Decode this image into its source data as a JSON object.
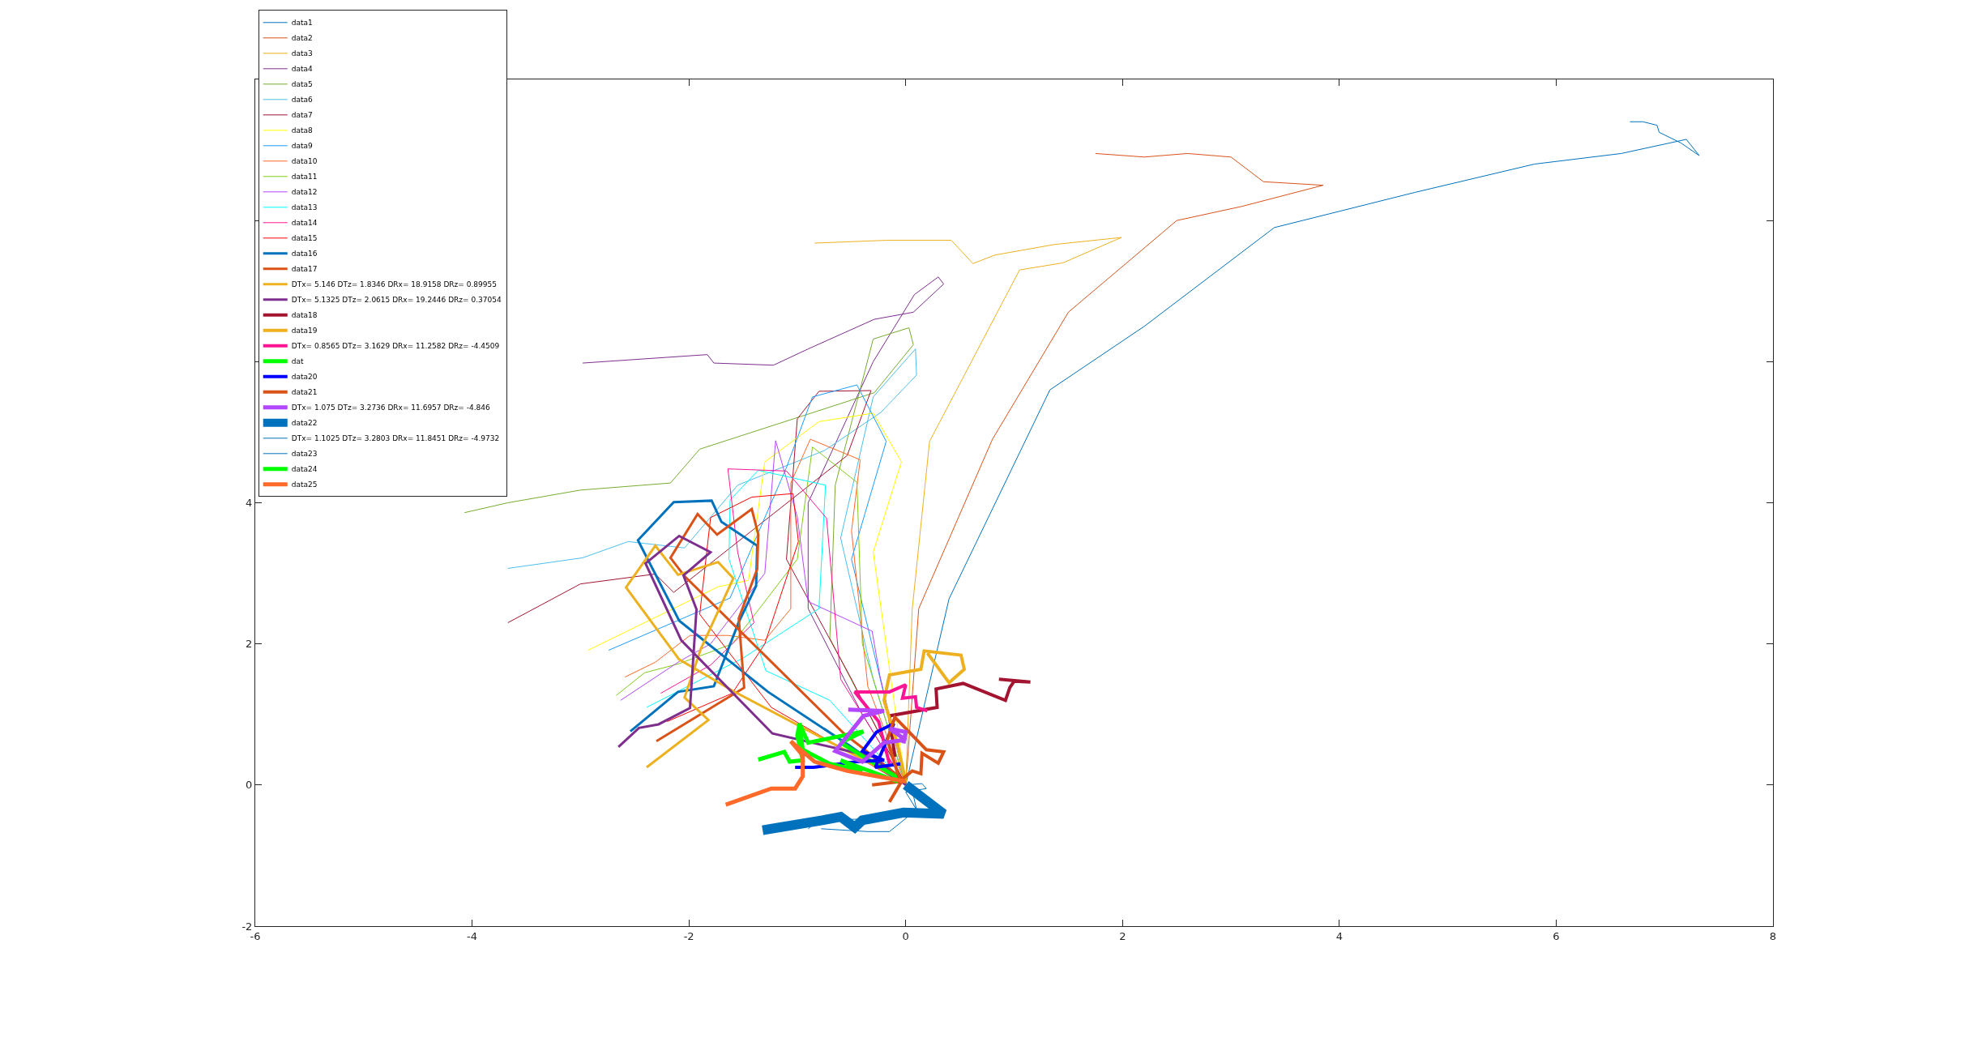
{
  "chart_data": {
    "type": "line",
    "xlim": [
      -6,
      8
    ],
    "xticks": [
      -6,
      -4,
      -2,
      0,
      2,
      4,
      6,
      8
    ],
    "ylim": [
      -2,
      10
    ],
    "yticks": [
      -2,
      0,
      2,
      4,
      {
        "value": 6,
        "label": null
      },
      {
        "value": 8,
        "label": null
      },
      {
        "value": 10,
        "label": null
      }
    ],
    "legend": "top left",
    "series": [
      {
        "name": "data1",
        "color": "#0072bd",
        "x": [
          0,
          0.4,
          1.33,
          2.2,
          3.4,
          4.7,
          5.8,
          6.6,
          7.2,
          7.32,
          7.15,
          6.95,
          6.93,
          6.8,
          6.68
        ],
        "values": [
          0,
          2.64,
          5.6,
          6.5,
          7.9,
          8.4,
          8.8,
          8.95,
          9.15,
          8.92,
          9.1,
          9.25,
          9.35,
          9.4,
          9.4
        ]
      },
      {
        "name": "data2",
        "color": "#d95319",
        "x": [
          0,
          0.12,
          0.8,
          1.5,
          2.5,
          3.1,
          3.85,
          3.3,
          3.0,
          2.6,
          2.2,
          1.75
        ],
        "values": [
          0,
          2.5,
          4.9,
          6.7,
          8.0,
          8.2,
          8.5,
          8.55,
          8.9,
          8.95,
          8.9,
          8.95
        ]
      },
      {
        "name": "data3",
        "color": "#edb120",
        "x": [
          0,
          0.06,
          0.22,
          1.05,
          1.45,
          1.99,
          1.37,
          0.82,
          0.62,
          0.42,
          -0.18,
          -0.84
        ],
        "values": [
          0,
          2.49,
          4.87,
          7.3,
          7.4,
          7.76,
          7.66,
          7.51,
          7.39,
          7.72,
          7.72,
          7.68
        ]
      },
      {
        "name": "data4",
        "color": "#7e2f8e",
        "x": [
          0,
          -0.4,
          -0.9,
          -0.9,
          -0.6,
          -0.3,
          0.08,
          0.3,
          0.35,
          0.07,
          -0.29,
          -0.9,
          -1.22,
          -1.77,
          -1.83,
          -2.98
        ],
        "values": [
          0,
          1,
          2.5,
          4,
          5,
          6,
          6.95,
          7.2,
          7.1,
          6.7,
          6.6,
          6.18,
          5.95,
          5.98,
          6.1,
          5.98
        ]
      },
      {
        "name": "data5",
        "color": "#77ac30",
        "x": [
          0,
          -0.7,
          -0.65,
          -0.3,
          0.03,
          0.07,
          -0.29,
          -1.9,
          -2.17,
          -3.0,
          -3.67,
          -4.07
        ],
        "values": [
          0,
          2.08,
          4.25,
          6.32,
          6.48,
          6.24,
          5.56,
          4.76,
          4.28,
          4.18,
          4.0,
          3.86
        ]
      },
      {
        "name": "data6",
        "color": "#4dbeee",
        "x": [
          0,
          -0.3,
          -0.6,
          -0.3,
          0.09,
          0.1,
          -0.23,
          -0.75,
          -1.55,
          -2.04,
          -2.56,
          -2.98,
          -3.67
        ],
        "values": [
          0,
          1.5,
          3.5,
          5.5,
          6.18,
          5.81,
          5.28,
          4.74,
          4.25,
          3.36,
          3.45,
          3.22,
          3.07
        ]
      },
      {
        "name": "data7",
        "color": "#a2142f",
        "x": [
          0,
          -0.5,
          -1.1,
          -1.0,
          -0.8,
          -0.32,
          -0.54,
          -2.14,
          -2.31,
          -3.0,
          -3.67
        ],
        "values": [
          0,
          1.5,
          3.2,
          5.19,
          5.58,
          5.59,
          4.67,
          2.73,
          2.99,
          2.85,
          2.3
        ]
      },
      {
        "name": "data8",
        "color": "#ffff00",
        "x": [
          0,
          -0.3,
          -0.04,
          -0.3,
          -0.8,
          -1.3,
          -1.45,
          -1.73,
          -2.93
        ],
        "values": [
          0,
          3.3,
          4.58,
          5.27,
          5.15,
          4.58,
          2.9,
          2.81,
          1.91
        ]
      },
      {
        "name": "data9",
        "color": "#1e9bff",
        "x": [
          0,
          -0.5,
          -0.18,
          -0.45,
          -0.86,
          -1.1,
          -1.62,
          -2.74
        ],
        "values": [
          0,
          3.2,
          4.87,
          5.67,
          5.5,
          4.5,
          2.65,
          1.91
        ]
      },
      {
        "name": "data10",
        "color": "#ff6929",
        "x": [
          0,
          -0.35,
          -0.5,
          -0.42,
          -0.88,
          -1.06,
          -1.06,
          -1.3,
          -1.64,
          -1.99,
          -2.31,
          -2.59
        ],
        "values": [
          0,
          1.4,
          3.6,
          4.61,
          4.9,
          4.28,
          2.5,
          2.05,
          2.12,
          2.12,
          1.74,
          1.53
        ]
      },
      {
        "name": "data11",
        "color": "#80cc1a",
        "x": [
          0,
          -0.4,
          -0.45,
          -0.86,
          -1.0,
          -1.6,
          -2.09,
          -2.41,
          -2.67
        ],
        "values": [
          0,
          2.0,
          4.29,
          4.79,
          3.2,
          2.0,
          1.72,
          1.59,
          1.27
        ]
      },
      {
        "name": "data12",
        "color": "#b347ff",
        "x": [
          0,
          -0.24,
          -0.31,
          -0.9,
          -1.0,
          -1.2,
          -1.3,
          -1.8,
          -2.09,
          -2.63
        ],
        "values": [
          0,
          1.56,
          2.18,
          2.6,
          3.8,
          4.88,
          3.0,
          2.0,
          1.75,
          1.2
        ]
      },
      {
        "name": "data13",
        "color": "#00ffff",
        "x": [
          0,
          -0.7,
          -1.29,
          -1.63,
          -1.62,
          -1.36,
          -0.74,
          -0.8,
          -1.5,
          -2.39
        ],
        "values": [
          0,
          1.2,
          1.62,
          3.2,
          4.04,
          4.46,
          4.25,
          2.5,
          1.8,
          1.1
        ]
      },
      {
        "name": "data14",
        "color": "#ff1493",
        "x": [
          0,
          -0.6,
          -0.73,
          -1.1,
          -1.64,
          -1.55,
          -1.4,
          -1.8,
          -2.26
        ],
        "values": [
          0,
          1.5,
          3.78,
          4.45,
          4.48,
          3.3,
          2.3,
          1.7,
          1.3
        ]
      },
      {
        "name": "data15",
        "color": "#ff0000",
        "x": [
          0,
          -1.24,
          -1.9,
          -1.8,
          -1.42,
          -1.04,
          -0.99,
          -1.3,
          -1.6,
          -2.2
        ],
        "values": [
          0,
          1.1,
          2.42,
          3.79,
          4.08,
          4.13,
          3.45,
          2.0,
          1.3,
          0.9
        ]
      },
      {
        "name": "data16",
        "color": "#0072bd",
        "x": [
          -2.54,
          -2.1,
          -1.77,
          -1.54,
          -1.38,
          -1.37,
          -1.7,
          -1.79,
          -2.14,
          -2.47,
          -2.09,
          -1.27,
          -0.52,
          -0.1
        ],
        "values": [
          0.76,
          1.32,
          1.4,
          2.31,
          2.82,
          3.39,
          3.73,
          4.03,
          4.01,
          3.47,
          2.33,
          1.32,
          0.56,
          0.1
        ]
      },
      {
        "name": "data17",
        "color": "#d95319",
        "x": [
          -2.3,
          -1.49,
          -1.54,
          -1.37,
          -1.36,
          -1.42,
          -1.74,
          -1.92,
          -2.17,
          -2.04,
          -0.57,
          0
        ],
        "values": [
          0.62,
          1.38,
          2.36,
          3.06,
          3.55,
          3.91,
          3.55,
          3.84,
          3.22,
          2.96,
          0.73,
          0.05
        ]
      },
      {
        "name": "DTx= 5.146 DTz= 1.8346 DRx= 18.9158 DRz= 0.89955",
        "color": "#edb120",
        "x": [
          -2.39,
          -1.82,
          -2.04,
          -1.89,
          -1.59,
          -1.73,
          -2.1,
          -2.31,
          -2.58,
          -2.09,
          -1.59,
          -0.07
        ],
        "values": [
          0.25,
          0.92,
          1.24,
          1.93,
          2.93,
          3.16,
          2.98,
          3.39,
          2.8,
          1.78,
          1.33,
          0.1
        ]
      },
      {
        "name": "DTx= 5.1325 DTz= 2.0615 DRx= 19.2446 DRz= 0.37054",
        "color": "#7e2f8e",
        "x": [
          -2.65,
          -2.46,
          -2.28,
          -1.99,
          -1.93,
          -2.05,
          -1.8,
          -2.09,
          -2.4,
          -2.07,
          -1.23,
          -0.3,
          0
        ],
        "values": [
          0.54,
          0.81,
          0.86,
          1.09,
          2.49,
          2.97,
          3.3,
          3.53,
          3.14,
          2.05,
          0.73,
          0.4,
          0
        ]
      },
      {
        "name": "data18",
        "color": "#a2142f",
        "x": [
          -0.1,
          -0.15,
          0.29,
          0.28,
          0.53,
          0.92,
          0.96,
          1.0,
          1.15,
          0.86
        ],
        "values": [
          0.4,
          0.98,
          1.1,
          1.36,
          1.44,
          1.2,
          1.38,
          1.47,
          1.46,
          1.5
        ]
      },
      {
        "name": "data19",
        "color": "#edb120",
        "x": [
          0,
          -0.08,
          -0.2,
          -0.15,
          0.14,
          0.17,
          0.51,
          0.54,
          0.4,
          0.2
        ],
        "values": [
          0.05,
          0.6,
          1.2,
          1.56,
          1.64,
          1.9,
          1.84,
          1.64,
          1.45,
          1.87
        ]
      },
      {
        "name": "DTx= 0.8565 DTz= 3.1629 DRx= 11.2582 DRz= -4.4509",
        "color": "#ff1493",
        "x": [
          -0.15,
          -0.25,
          -0.47,
          -0.15,
          0,
          -0.03,
          0.09,
          0.1,
          0.2
        ],
        "values": [
          0.3,
          0.9,
          1.32,
          1.32,
          1.42,
          1.23,
          1.25,
          1.1,
          1.05
        ]
      },
      {
        "name": "dat",
        "color": "#00ff00",
        "x": [
          -1.36,
          -1.12,
          -1.07,
          -0.95,
          -1.0,
          -0.98,
          -0.9,
          -0.39,
          -0.6,
          -0.07
        ],
        "values": [
          0.36,
          0.47,
          0.33,
          0.35,
          0.7,
          0.87,
          0.6,
          0.76,
          0.6,
          0.1
        ]
      },
      {
        "name": "data20",
        "color": "#0000ff",
        "x": [
          -1.02,
          -0.85,
          -0.45,
          -0.2,
          -0.4,
          -0.27,
          -0.11,
          -0.28,
          -0.05
        ],
        "values": [
          0.25,
          0.25,
          0.33,
          0.35,
          0.48,
          0.75,
          0.87,
          0.25,
          0.3
        ]
      },
      {
        "name": "data21",
        "color": "#d95319",
        "x": [
          -0.31,
          -0.05,
          -0.17,
          -0.1,
          0.19,
          0.35,
          0.3,
          0.15,
          0.14,
          0.06,
          -0.02,
          -0.15
        ],
        "values": [
          0.0,
          0.05,
          0.64,
          0.96,
          0.5,
          0.47,
          0.31,
          0.45,
          0.16,
          0.2,
          0.1,
          -0.24
        ]
      },
      {
        "name": "DTx= 1.075 DTz= 3.2736 DRx= 11.6957 DRz= -4.846",
        "color": "#b347ff",
        "x": [
          -0.53,
          -0.2,
          -0.39,
          -0.65,
          -0.4,
          -0.2,
          0,
          -0.15,
          0,
          -0.02
        ],
        "values": [
          1.07,
          1.05,
          0.98,
          0.48,
          0.33,
          0.6,
          0.64,
          0.8,
          0.75,
          0.59
        ]
      },
      {
        "name": "data22",
        "color": "#0072bd",
        "x": [
          -1.32,
          -0.77,
          -0.6,
          -0.47,
          -0.4,
          -0.02,
          0.35,
          0
        ],
        "values": [
          -0.64,
          -0.5,
          -0.45,
          -0.6,
          -0.5,
          -0.39,
          -0.41,
          0
        ]
      },
      {
        "name": "DTx= 1.1025 DTz= 3.2803 DRx= 11.8451 DRz= -4.9732",
        "color": "#0072bd",
        "x": [
          0,
          0.15,
          0.19,
          0,
          0.1,
          -0.15,
          -0.35,
          -0.78
        ],
        "values": [
          0,
          0.02,
          -0.05,
          -0.1,
          -0.35,
          -0.66,
          -0.66,
          -0.62
        ]
      },
      {
        "name": "data23",
        "color": "#0072bd",
        "x": [
          -0.9,
          -0.8,
          -0.35,
          0.1,
          0.05
        ],
        "values": [
          -0.62,
          -0.5,
          -0.48,
          -0.35,
          0.0
        ]
      },
      {
        "name": "data24",
        "color": "#00ff00",
        "x": [
          -0.98,
          -0.95,
          -0.7,
          -0.4,
          -0.6,
          -0.07
        ],
        "values": [
          0.87,
          0.5,
          0.3,
          0.2,
          0.35,
          0.05
        ]
      },
      {
        "name": "data25",
        "color": "#ff6929",
        "x": [
          -1.66,
          -1.24,
          -1.02,
          -0.95,
          -0.95,
          -1.06,
          -0.84,
          -0.54,
          0
        ],
        "values": [
          -0.28,
          -0.05,
          -0.05,
          0.12,
          0.42,
          0.62,
          0.33,
          0.2,
          0.05
        ]
      }
    ]
  }
}
